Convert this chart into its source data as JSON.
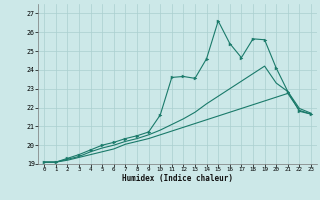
{
  "title": "",
  "xlabel": "Humidex (Indice chaleur)",
  "ylabel": "",
  "background_color": "#cce8e8",
  "grid_color": "#aacfcf",
  "line_color": "#1a7a6a",
  "xlim": [
    -0.5,
    23.5
  ],
  "ylim": [
    19,
    27.5
  ],
  "x_ticks": [
    0,
    1,
    2,
    3,
    4,
    5,
    6,
    7,
    8,
    9,
    10,
    11,
    12,
    13,
    14,
    15,
    16,
    17,
    18,
    19,
    20,
    21,
    22,
    23
  ],
  "y_ticks": [
    19,
    20,
    21,
    22,
    23,
    24,
    25,
    26,
    27
  ],
  "series": [
    {
      "x": [
        0,
        1,
        2,
        3,
        4,
        5,
        6,
        7,
        8,
        9,
        10,
        11,
        12,
        13,
        14,
        15,
        16,
        17,
        18,
        19,
        20,
        21,
        22,
        23
      ],
      "y": [
        19.1,
        19.1,
        19.2,
        19.35,
        19.5,
        19.65,
        19.8,
        20.05,
        20.2,
        20.35,
        20.55,
        20.75,
        20.95,
        21.15,
        21.35,
        21.55,
        21.75,
        21.95,
        22.15,
        22.35,
        22.55,
        22.75,
        21.85,
        21.65
      ],
      "marker": false,
      "linewidth": 0.8
    },
    {
      "x": [
        0,
        1,
        2,
        3,
        4,
        5,
        6,
        7,
        8,
        9,
        10,
        11,
        12,
        13,
        14,
        15,
        16,
        17,
        18,
        19,
        20,
        21,
        22,
        23
      ],
      "y": [
        19.1,
        19.1,
        19.25,
        19.4,
        19.65,
        19.85,
        20.0,
        20.2,
        20.35,
        20.55,
        20.8,
        21.1,
        21.4,
        21.75,
        22.2,
        22.6,
        23.0,
        23.4,
        23.8,
        24.2,
        23.3,
        22.85,
        21.95,
        21.7
      ],
      "marker": false,
      "linewidth": 0.8
    },
    {
      "x": [
        0,
        1,
        2,
        3,
        4,
        5,
        6,
        7,
        8,
        9,
        10,
        11,
        12,
        13,
        14,
        15,
        16,
        17,
        18,
        19,
        20,
        21,
        22,
        23
      ],
      "y": [
        19.1,
        19.1,
        19.3,
        19.5,
        19.75,
        20.0,
        20.15,
        20.35,
        20.5,
        20.7,
        21.6,
        23.6,
        23.65,
        23.55,
        24.6,
        26.6,
        25.4,
        24.65,
        25.65,
        25.6,
        24.1,
        22.85,
        21.8,
        21.65
      ],
      "marker": true,
      "linewidth": 0.8
    }
  ]
}
